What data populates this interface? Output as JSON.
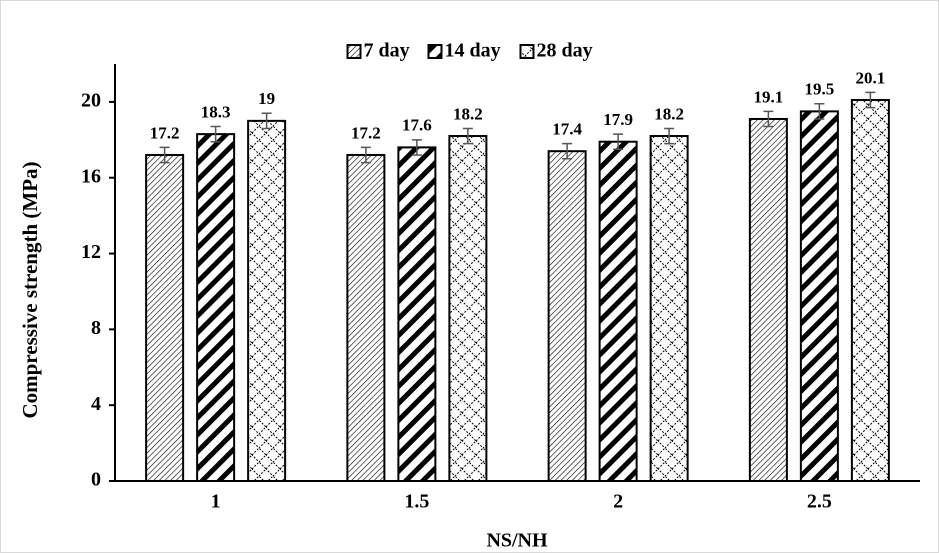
{
  "chart_data": {
    "type": "bar",
    "x_label": "NS/NH",
    "y_label": "Compressive strength (MPa)",
    "categories": [
      "1",
      "1.5",
      "2",
      "2.5"
    ],
    "series": [
      {
        "name": "7 day",
        "color": "#000000",
        "values": [
          17.2,
          17.2,
          17.4,
          19.1
        ],
        "errors": [
          0.4,
          0.4,
          0.4,
          0.4
        ]
      },
      {
        "name": "14 day",
        "color": "#000000",
        "values": [
          18.3,
          17.6,
          17.9,
          19.5
        ],
        "errors": [
          0.4,
          0.4,
          0.4,
          0.4
        ]
      },
      {
        "name": "28 day",
        "color": "#000000",
        "values": [
          19,
          18.2,
          18.2,
          20.1
        ],
        "errors": [
          0.4,
          0.4,
          0.4,
          0.4
        ]
      }
    ],
    "ylim": [
      0,
      22
    ],
    "yticks": [
      0,
      4,
      8,
      12,
      16,
      20
    ],
    "grid": false,
    "legend": "top"
  }
}
